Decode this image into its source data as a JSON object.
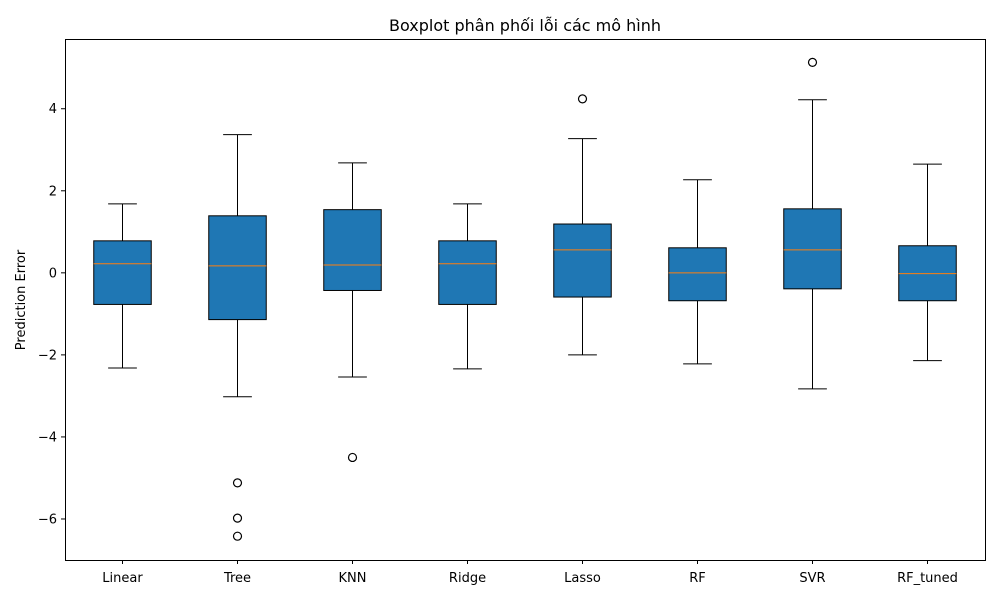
{
  "chart_data": {
    "type": "boxplot",
    "title": "Boxplot phân phối lỗi các mô hình",
    "xlabel": "",
    "ylabel": "Prediction Error",
    "ylim": [
      -7.0,
      5.7
    ],
    "yticks": [
      -6,
      -4,
      -2,
      0,
      2,
      4
    ],
    "ytick_labels": [
      "−6",
      "−4",
      "−2",
      "0",
      "2",
      "4"
    ],
    "grid": false,
    "categories": [
      "Linear",
      "Tree",
      "KNN",
      "Ridge",
      "Lasso",
      "RF",
      "SVR",
      "RF_tuned"
    ],
    "boxes": [
      {
        "name": "Linear",
        "whisker_low": -2.32,
        "q1": -0.77,
        "median": 0.22,
        "q3": 0.78,
        "whisker_high": 1.68,
        "outliers": []
      },
      {
        "name": "Tree",
        "whisker_low": -3.02,
        "q1": -1.14,
        "median": 0.17,
        "q3": 1.39,
        "whisker_high": 3.37,
        "outliers": [
          -5.12,
          -5.98,
          -6.42
        ]
      },
      {
        "name": "KNN",
        "whisker_low": -2.54,
        "q1": -0.43,
        "median": 0.19,
        "q3": 1.54,
        "whisker_high": 2.68,
        "outliers": [
          -4.5
        ]
      },
      {
        "name": "Ridge",
        "whisker_low": -2.34,
        "q1": -0.77,
        "median": 0.22,
        "q3": 0.78,
        "whisker_high": 1.68,
        "outliers": []
      },
      {
        "name": "Lasso",
        "whisker_low": -2.0,
        "q1": -0.59,
        "median": 0.56,
        "q3": 1.19,
        "whisker_high": 3.27,
        "outliers": [
          4.24
        ]
      },
      {
        "name": "RF",
        "whisker_low": -2.22,
        "q1": -0.68,
        "median": 0.0,
        "q3": 0.61,
        "whisker_high": 2.27,
        "outliers": []
      },
      {
        "name": "SVR",
        "whisker_low": -2.83,
        "q1": -0.39,
        "median": 0.56,
        "q3": 1.56,
        "whisker_high": 4.22,
        "outliers": [
          5.13
        ]
      },
      {
        "name": "RF_tuned",
        "whisker_low": -2.14,
        "q1": -0.68,
        "median": -0.02,
        "q3": 0.66,
        "whisker_high": 2.65,
        "outliers": []
      }
    ],
    "colors": {
      "box_fill": "#1f77b4",
      "median": "#ff7f0e",
      "lines": "#000000",
      "background": "#ffffff"
    }
  }
}
